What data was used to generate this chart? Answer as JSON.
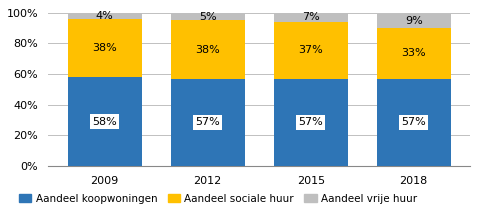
{
  "years": [
    "2009",
    "2012",
    "2015",
    "2018"
  ],
  "koop": [
    58,
    57,
    57,
    57
  ],
  "sociaal": [
    38,
    38,
    37,
    33
  ],
  "vrij": [
    4,
    5,
    7,
    9
  ],
  "koop_color": "#2E75B6",
  "sociaal_color": "#FFC000",
  "vrij_color": "#BFBFBF",
  "koop_label": "Aandeel koopwoningen",
  "sociaal_label": "Aandeel sociale huur",
  "vrij_label": "Aandeel vrije huur",
  "bar_width": 0.72,
  "ylim": [
    0,
    100
  ],
  "yticks": [
    0,
    20,
    40,
    60,
    80,
    100
  ],
  "ytick_labels": [
    "0%",
    "20%",
    "40%",
    "60%",
    "80%",
    "100%"
  ],
  "grid_color": "#C0C0C0",
  "label_fontsize": 8,
  "tick_fontsize": 8,
  "legend_fontsize": 7.5
}
